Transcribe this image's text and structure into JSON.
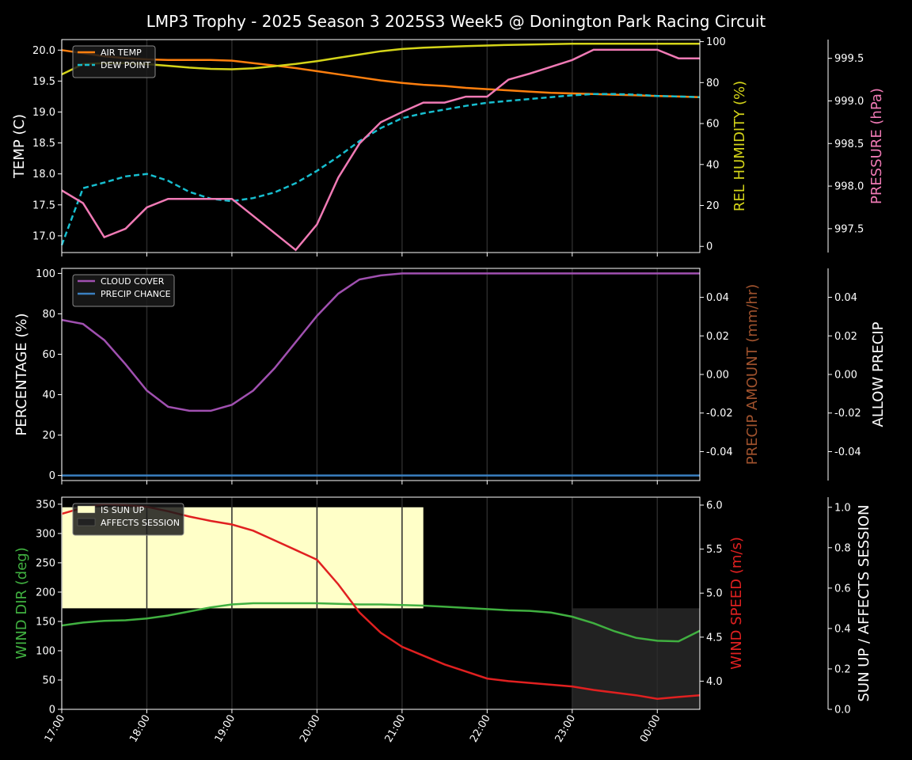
{
  "title": "LMP3 Trophy - 2025 Season 3 2025S3 Week5 @ Donington Park Racing Circuit",
  "x_tick_labels": [
    "17:00",
    "18:00",
    "19:00",
    "20:00",
    "21:00",
    "22:00",
    "23:00",
    "00:00"
  ],
  "colors": {
    "air_temp": "#ff7f0e",
    "dew_point": "#17becf",
    "rel_humidity": "#d4d419",
    "pressure": "#f07ab5",
    "cloud_cover": "#a050b0",
    "precip_chance": "#3a7fc0",
    "precip_amount": "#a0522d",
    "wind_dir": "#40b040",
    "wind_speed": "#e02020",
    "sun_up": "#ffffc8",
    "affects_session": "#222222"
  },
  "chart_data": [
    {
      "type": "line",
      "panel": "temperature",
      "x": [
        "17:00",
        "17:15",
        "17:30",
        "17:45",
        "18:00",
        "18:15",
        "18:30",
        "18:45",
        "19:00",
        "19:15",
        "19:30",
        "19:45",
        "20:00",
        "20:15",
        "20:30",
        "20:45",
        "21:00",
        "21:15",
        "21:30",
        "21:45",
        "22:00",
        "22:15",
        "22:30",
        "22:45",
        "23:00",
        "23:15",
        "23:30",
        "23:45",
        "00:00",
        "00:15",
        "00:30"
      ],
      "xlim": [
        "17:00",
        "00:30"
      ],
      "ylabel": "TEMP (C)",
      "ylim": [
        16.73,
        20.17
      ],
      "y_ticks": [
        "17.0",
        "17.5",
        "18.0",
        "18.5",
        "19.0",
        "19.5",
        "20.0"
      ],
      "y2label": "REL HUMIDITY (%)",
      "y2lim": [
        -3,
        101
      ],
      "y2_ticks": [
        "0",
        "20",
        "40",
        "60",
        "80",
        "100"
      ],
      "y3label": "PRESSURE (hPa)",
      "y3lim": [
        997.22,
        999.72
      ],
      "y3_ticks": [
        "997.5",
        "998.0",
        "998.5",
        "999.0",
        "999.5"
      ],
      "legend": "top-left",
      "series": [
        {
          "name": "AIR TEMP",
          "axis": "left",
          "style": "solid",
          "values": [
            20.0,
            19.95,
            19.9,
            19.87,
            19.85,
            19.84,
            19.84,
            19.84,
            19.83,
            19.79,
            19.75,
            19.71,
            19.66,
            19.61,
            19.56,
            19.51,
            19.47,
            19.44,
            19.42,
            19.39,
            19.37,
            19.35,
            19.33,
            19.31,
            19.3,
            19.29,
            19.28,
            19.27,
            19.26,
            19.25,
            19.24
          ]
        },
        {
          "name": "DEW POINT",
          "axis": "left",
          "style": "dashed",
          "values": [
            16.85,
            17.77,
            17.86,
            17.96,
            18.0,
            17.89,
            17.71,
            17.6,
            17.56,
            17.61,
            17.7,
            17.85,
            18.05,
            18.28,
            18.53,
            18.74,
            18.9,
            18.98,
            19.04,
            19.1,
            19.15,
            19.18,
            19.21,
            19.24,
            19.27,
            19.29,
            19.29,
            19.28,
            19.26,
            19.25,
            19.24
          ]
        },
        {
          "name": "",
          "axis": "right",
          "style": "solid",
          "color_key": "rel_humidity",
          "values": [
            84,
            89,
            89.5,
            89.5,
            89,
            88.2,
            87.3,
            86.7,
            86.5,
            87,
            88,
            89.1,
            90.5,
            92.1,
            93.7,
            95.3,
            96.4,
            97,
            97.4,
            97.8,
            98.1,
            98.4,
            98.6,
            98.8,
            99,
            99,
            99,
            99,
            99,
            99,
            99
          ]
        },
        {
          "name": "",
          "axis": "right2",
          "style": "solid",
          "color_key": "pressure",
          "values": [
            997.95,
            997.8,
            997.4,
            997.5,
            997.75,
            997.85,
            997.85,
            997.85,
            997.85,
            997.65,
            997.45,
            997.25,
            997.55,
            998.1,
            998.5,
            998.75,
            998.87,
            998.98,
            998.98,
            999.05,
            999.05,
            999.25,
            999.32,
            999.4,
            999.48,
            999.6,
            999.6,
            999.6,
            999.6,
            999.5,
            999.5
          ]
        }
      ]
    },
    {
      "type": "line",
      "panel": "precipitation",
      "ylabel": "PERCENTAGE (%)",
      "ylim": [
        -2.5,
        102.5
      ],
      "y_ticks": [
        "0",
        "20",
        "40",
        "60",
        "80",
        "100"
      ],
      "y2label": "PRECIP AMOUNT (mm/hr)",
      "y2lim": [
        -0.055,
        0.055
      ],
      "y2_ticks": [
        "-0.04",
        "-0.02",
        "0.00",
        "0.02",
        "0.04"
      ],
      "y3label": "ALLOW PRECIP",
      "y3lim": [
        -0.055,
        0.055
      ],
      "y3_ticks": [
        "-0.04",
        "-0.02",
        "0.00",
        "0.02",
        "0.04"
      ],
      "legend": "top-left",
      "series": [
        {
          "name": "CLOUD COVER",
          "axis": "left",
          "values": [
            77,
            75,
            67,
            55,
            42,
            34,
            32,
            32,
            35,
            42,
            53,
            66,
            79,
            90,
            97,
            99,
            100,
            100,
            100,
            100,
            100,
            100,
            100,
            100,
            100,
            100,
            100,
            100,
            100,
            100,
            100
          ]
        },
        {
          "name": "PRECIP CHANCE",
          "axis": "left",
          "values": [
            0,
            0,
            0,
            0,
            0,
            0,
            0,
            0,
            0,
            0,
            0,
            0,
            0,
            0,
            0,
            0,
            0,
            0,
            0,
            0,
            0,
            0,
            0,
            0,
            0,
            0,
            0,
            0,
            0,
            0,
            0
          ]
        }
      ]
    },
    {
      "type": "line",
      "panel": "wind",
      "ylabel": "WIND DIR (deg)",
      "ylim": [
        0,
        362
      ],
      "y_ticks": [
        "0",
        "50",
        "100",
        "150",
        "200",
        "250",
        "300",
        "350"
      ],
      "y2label": "WIND SPEED (m/s)",
      "y2lim": [
        3.68,
        6.09
      ],
      "y2_ticks": [
        "4.0",
        "4.5",
        "5.0",
        "5.5",
        "6.0"
      ],
      "y3label": "SUN UP / AFFECTS SESSION",
      "y3lim": [
        0,
        1.05
      ],
      "y3_ticks": [
        "0.0",
        "0.2",
        "0.4",
        "0.6",
        "0.8",
        "1.0"
      ],
      "legend": "top-left",
      "bands": [
        {
          "name": "IS SUN UP",
          "x_start": "17:00",
          "x_end": "21:15",
          "y_low": 0.5,
          "y_high": 1.0
        },
        {
          "name": "AFFECTS SESSION",
          "x_start": "23:00",
          "x_end": "00:30",
          "y_low": 0.0,
          "y_high": 0.5
        }
      ],
      "series": [
        {
          "name": "",
          "axis": "left",
          "color_key": "wind_dir",
          "values": [
            143,
            148,
            151,
            152,
            155,
            160,
            167,
            174,
            179,
            181,
            181,
            181,
            181,
            180,
            179,
            179,
            178,
            177,
            175,
            173,
            171,
            169,
            168,
            165,
            158,
            147,
            133,
            122,
            117,
            116,
            134
          ]
        },
        {
          "name": "",
          "axis": "right",
          "color_key": "wind_speed",
          "values": [
            5.9,
            5.97,
            6.01,
            6.0,
            5.98,
            5.93,
            5.87,
            5.82,
            5.78,
            5.71,
            5.6,
            5.49,
            5.38,
            5.1,
            4.78,
            4.55,
            4.39,
            4.29,
            4.19,
            4.11,
            4.03,
            4.0,
            3.98,
            3.96,
            3.94,
            3.9,
            3.87,
            3.84,
            3.8,
            3.82,
            3.84
          ]
        }
      ]
    }
  ]
}
